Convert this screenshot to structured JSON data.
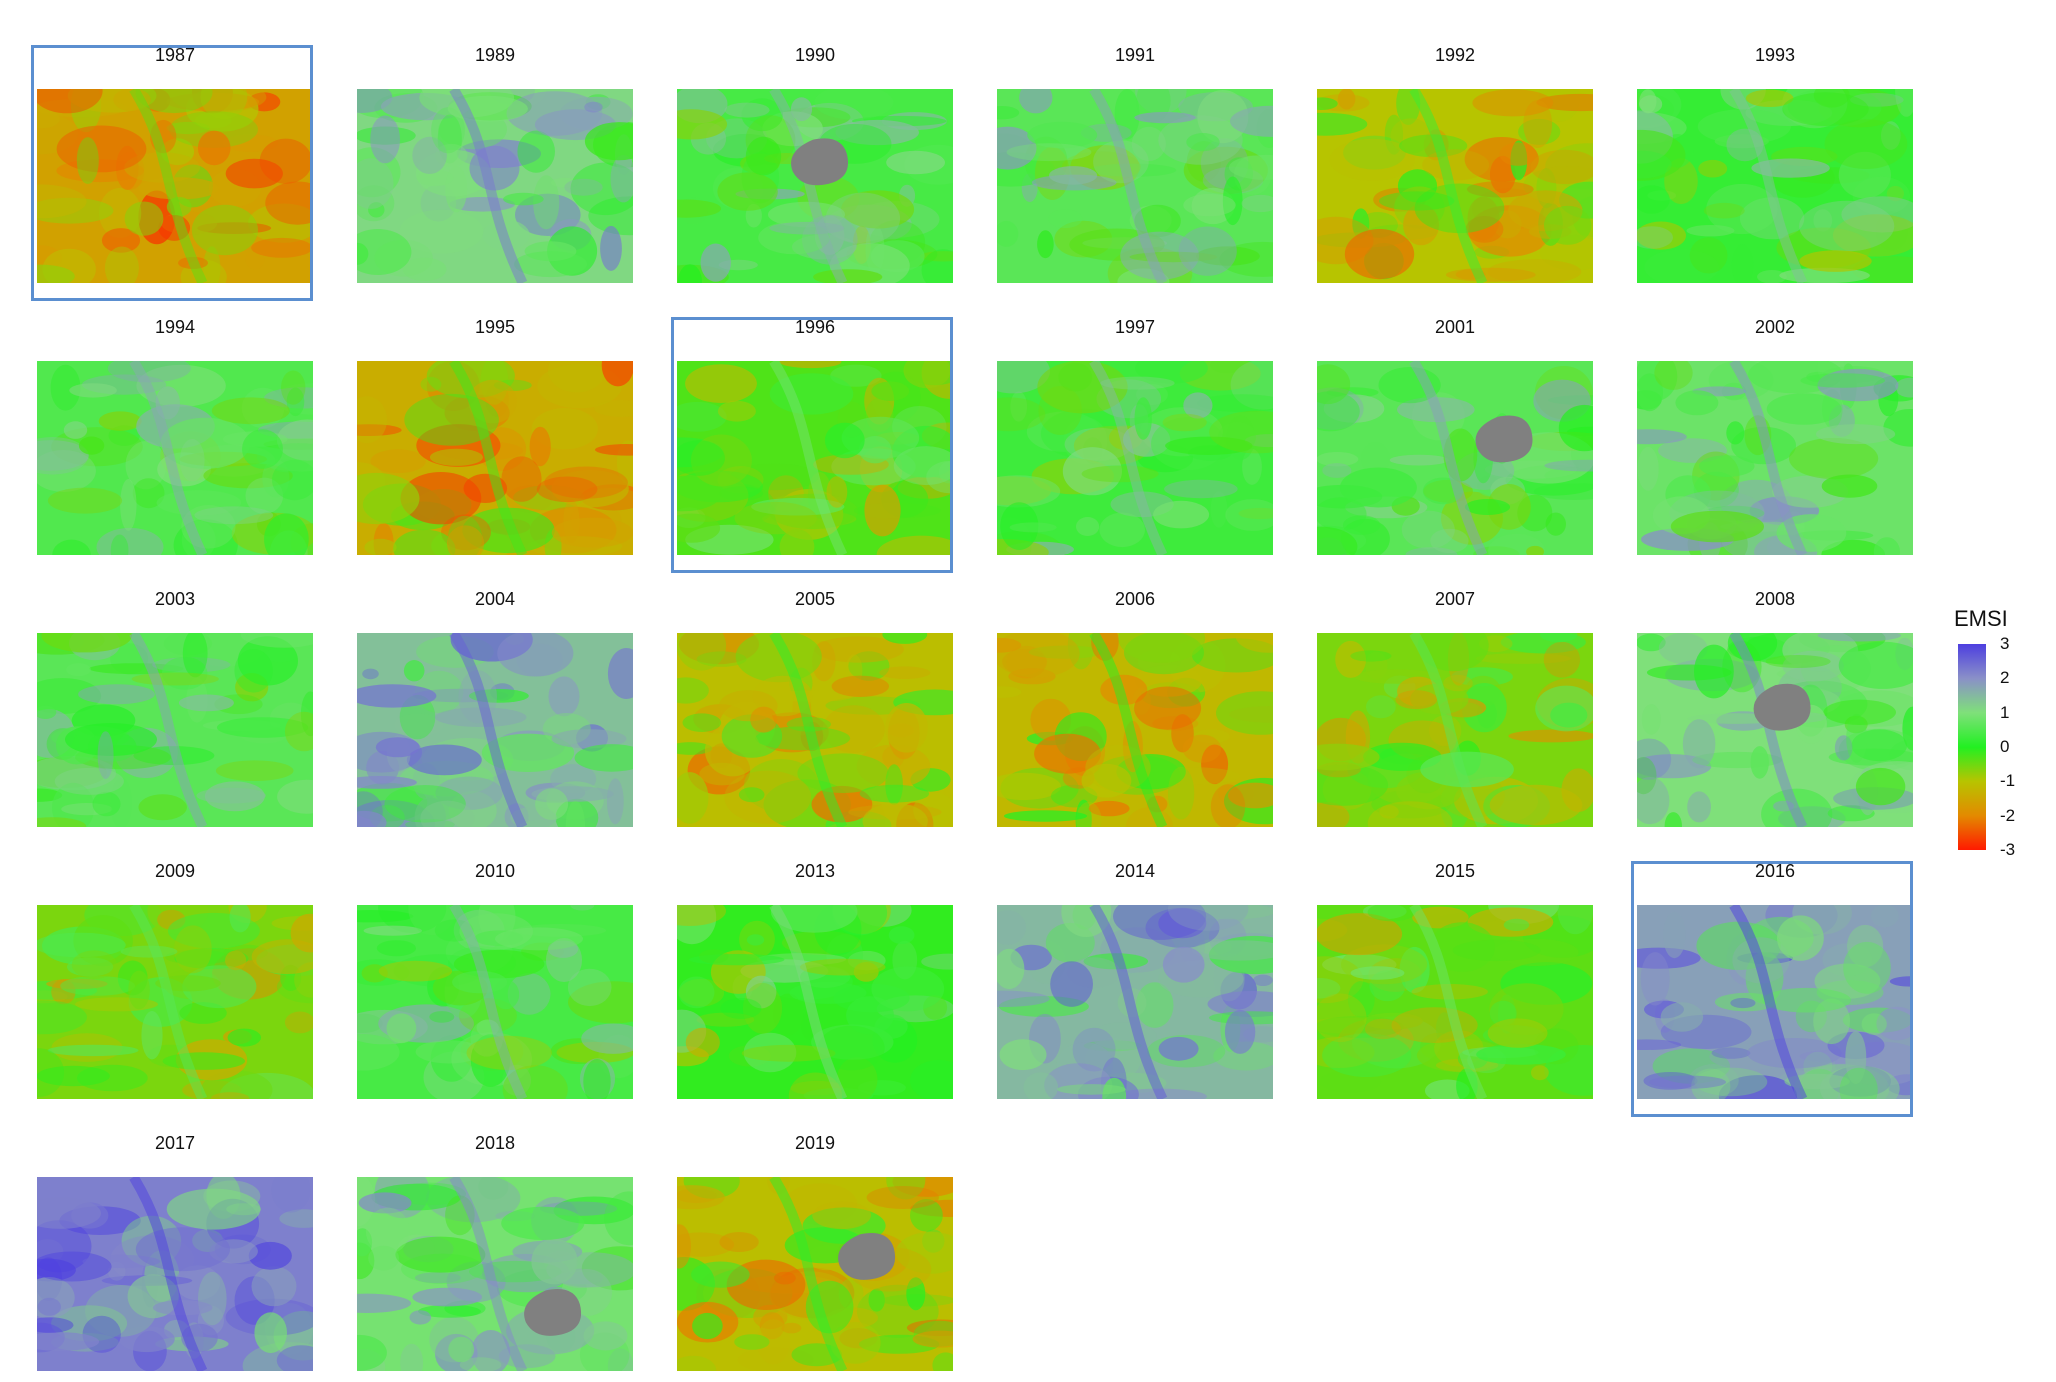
{
  "legend": {
    "title": "EMSI",
    "ticks": [
      "3",
      "2",
      "1",
      "0",
      "-1",
      "-2",
      "-3"
    ],
    "colors": [
      "#4d3fe0",
      "#8a90c8",
      "#7fe07a",
      "#22f022",
      "#b7c400",
      "#e38a00",
      "#ff1a00"
    ]
  },
  "panels": [
    {
      "year": "1987",
      "highlighted": true,
      "emsi_mean": -1.6,
      "nodata": false
    },
    {
      "year": "1989",
      "highlighted": false,
      "emsi_mean": 1.1,
      "nodata": false
    },
    {
      "year": "1990",
      "highlighted": false,
      "emsi_mean": 0.4,
      "nodata": true
    },
    {
      "year": "1991",
      "highlighted": false,
      "emsi_mean": 0.6,
      "nodata": false
    },
    {
      "year": "1992",
      "highlighted": false,
      "emsi_mean": -1.0,
      "nodata": false
    },
    {
      "year": "1993",
      "highlighted": false,
      "emsi_mean": 0.2,
      "nodata": false
    },
    {
      "year": "1994",
      "highlighted": false,
      "emsi_mean": 0.5,
      "nodata": false
    },
    {
      "year": "1995",
      "highlighted": false,
      "emsi_mean": -1.4,
      "nodata": false
    },
    {
      "year": "1996",
      "highlighted": true,
      "emsi_mean": -0.3,
      "nodata": false
    },
    {
      "year": "1997",
      "highlighted": false,
      "emsi_mean": 0.3,
      "nodata": false
    },
    {
      "year": "2001",
      "highlighted": false,
      "emsi_mean": 0.6,
      "nodata": true
    },
    {
      "year": "2002",
      "highlighted": false,
      "emsi_mean": 0.8,
      "nodata": false
    },
    {
      "year": "2003",
      "highlighted": false,
      "emsi_mean": 0.6,
      "nodata": false
    },
    {
      "year": "2004",
      "highlighted": false,
      "emsi_mean": 1.4,
      "nodata": false
    },
    {
      "year": "2005",
      "highlighted": false,
      "emsi_mean": -1.1,
      "nodata": false
    },
    {
      "year": "2006",
      "highlighted": false,
      "emsi_mean": -1.2,
      "nodata": false
    },
    {
      "year": "2007",
      "highlighted": false,
      "emsi_mean": -0.6,
      "nodata": false
    },
    {
      "year": "2008",
      "highlighted": false,
      "emsi_mean": 1.0,
      "nodata": true
    },
    {
      "year": "2009",
      "highlighted": false,
      "emsi_mean": -0.6,
      "nodata": false
    },
    {
      "year": "2010",
      "highlighted": false,
      "emsi_mean": 0.4,
      "nodata": false
    },
    {
      "year": "2013",
      "highlighted": false,
      "emsi_mean": -0.1,
      "nodata": false
    },
    {
      "year": "2014",
      "highlighted": false,
      "emsi_mean": 1.5,
      "nodata": false
    },
    {
      "year": "2015",
      "highlighted": false,
      "emsi_mean": -0.4,
      "nodata": false
    },
    {
      "year": "2016",
      "highlighted": true,
      "emsi_mean": 1.8,
      "nodata": false
    },
    {
      "year": "2017",
      "highlighted": false,
      "emsi_mean": 2.2,
      "nodata": false
    },
    {
      "year": "2018",
      "highlighted": false,
      "emsi_mean": 0.9,
      "nodata": true
    },
    {
      "year": "2019",
      "highlighted": false,
      "emsi_mean": -1.1,
      "nodata": true
    }
  ]
}
